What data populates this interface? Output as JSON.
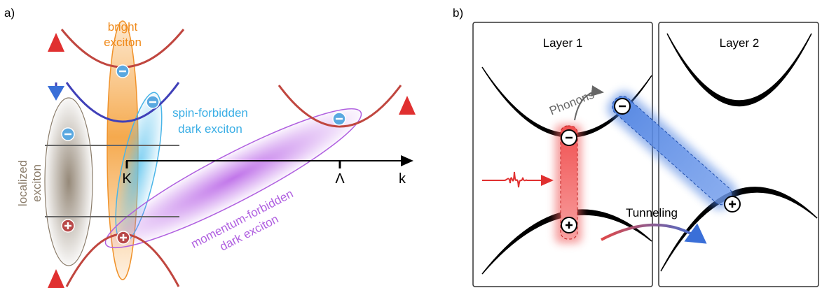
{
  "panel_a": {
    "label": "a)",
    "bright_exciton": [
      "bright",
      "exciton"
    ],
    "spin_forbidden_exciton": [
      "spin-forbidden",
      "dark exciton"
    ],
    "localized_exciton": [
      "localized",
      "exciton"
    ],
    "momentum_forbidden_exciton": [
      "momentum-forbidden",
      "dark exciton"
    ],
    "axis": {
      "k_point": "K",
      "lambda_point": "Λ",
      "momentum": "k"
    }
  },
  "panel_b": {
    "label": "b)",
    "layer_1": "Layer 1",
    "layer_2": "Layer 2",
    "phonons": "Phonons",
    "tunneling": "Tunneling"
  }
}
